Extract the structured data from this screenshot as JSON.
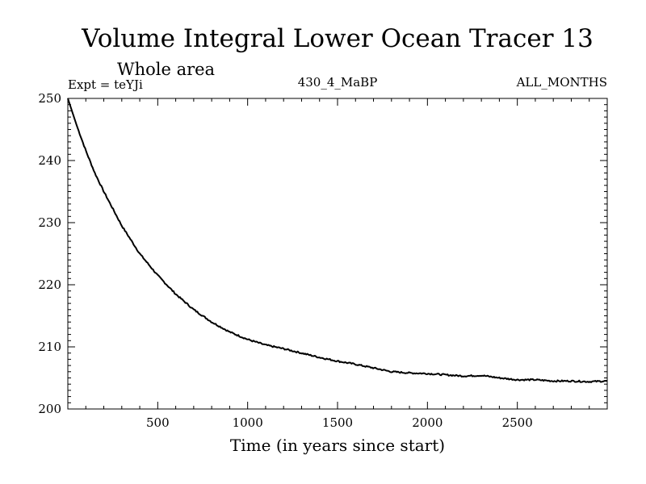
{
  "chart_data": {
    "type": "line",
    "title": "Volume Integral Lower Ocean Tracer 13",
    "subtitle": "Whole area",
    "annotations": {
      "left": "Expt = teYJi",
      "center": "430_4_MaBP",
      "right": "ALL_MONTHS"
    },
    "xlabel": "Time (in years since start)",
    "ylabel": "",
    "xlim": [
      0,
      3000
    ],
    "ylim": [
      200,
      250
    ],
    "xticks": [
      500,
      1000,
      1500,
      2000,
      2500
    ],
    "xtick_labels": [
      "500",
      "1000",
      "1500",
      "2000",
      "2500"
    ],
    "yticks": [
      200,
      210,
      220,
      230,
      240,
      250
    ],
    "ytick_labels": [
      "200",
      "210",
      "220",
      "230",
      "240",
      "250"
    ],
    "series": [
      {
        "name": "Volume Integral Lower Ocean Tracer 13",
        "color": "#000000",
        "x": [
          0,
          50,
          100,
          150,
          200,
          300,
          400,
          500,
          600,
          700,
          800,
          900,
          1000,
          1100,
          1200,
          1300,
          1400,
          1500,
          1600,
          1700,
          1800,
          1900,
          2000,
          2100,
          2200,
          2300,
          2400,
          2500,
          2600,
          2700,
          2800,
          2900,
          3000
        ],
        "y": [
          250,
          245.6,
          241.6,
          238.0,
          235.0,
          229.5,
          225.0,
          221.5,
          218.5,
          216.0,
          214.0,
          212.4,
          211.2,
          210.3,
          209.7,
          209.0,
          208.3,
          207.7,
          207.2,
          206.6,
          206.0,
          205.8,
          205.7,
          205.5,
          205.3,
          205.4,
          205.0,
          204.7,
          204.7,
          204.5,
          204.5,
          204.4,
          204.5
        ]
      }
    ]
  }
}
